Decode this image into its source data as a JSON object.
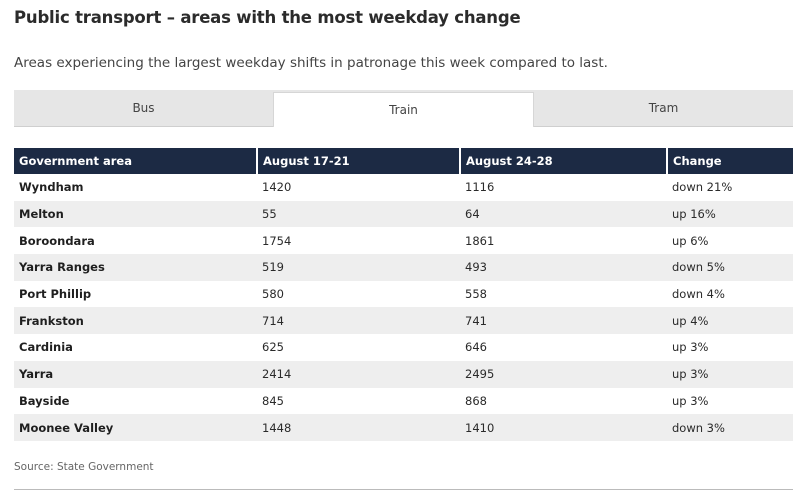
{
  "title": "Public transport – areas with the most weekday change",
  "subtitle": "Areas experiencing the largest weekday shifts in patronage this week compared to last.",
  "tabs": [
    {
      "label": "Bus",
      "active": false
    },
    {
      "label": "Train",
      "active": true
    },
    {
      "label": "Tram",
      "active": false
    }
  ],
  "table": {
    "headers": [
      "Government area",
      "August 17-21",
      "August 24-28",
      "Change"
    ],
    "rows": [
      {
        "area": "Wyndham",
        "aug17_21": "1420",
        "aug24_28": "1116",
        "change": "down 21%"
      },
      {
        "area": "Melton",
        "aug17_21": "55",
        "aug24_28": "64",
        "change": "up 16%"
      },
      {
        "area": "Boroondara",
        "aug17_21": "1754",
        "aug24_28": "1861",
        "change": "up 6%"
      },
      {
        "area": "Yarra Ranges",
        "aug17_21": "519",
        "aug24_28": "493",
        "change": "down 5%"
      },
      {
        "area": "Port Phillip",
        "aug17_21": "580",
        "aug24_28": "558",
        "change": "down 4%"
      },
      {
        "area": "Frankston",
        "aug17_21": "714",
        "aug24_28": "741",
        "change": "up 4%"
      },
      {
        "area": "Cardinia",
        "aug17_21": "625",
        "aug24_28": "646",
        "change": "up 3%"
      },
      {
        "area": "Yarra",
        "aug17_21": "2414",
        "aug24_28": "2495",
        "change": "up 3%"
      },
      {
        "area": "Bayside",
        "aug17_21": "845",
        "aug24_28": "868",
        "change": "up 3%"
      },
      {
        "area": "Moonee Valley",
        "aug17_21": "1448",
        "aug24_28": "1410",
        "change": "down 3%"
      }
    ]
  },
  "source": "Source: State Government",
  "colors": {
    "header_bg": "#1c2a44",
    "stripe_bg": "#eeeeee",
    "tab_bar_bg": "#e6e6e6"
  }
}
